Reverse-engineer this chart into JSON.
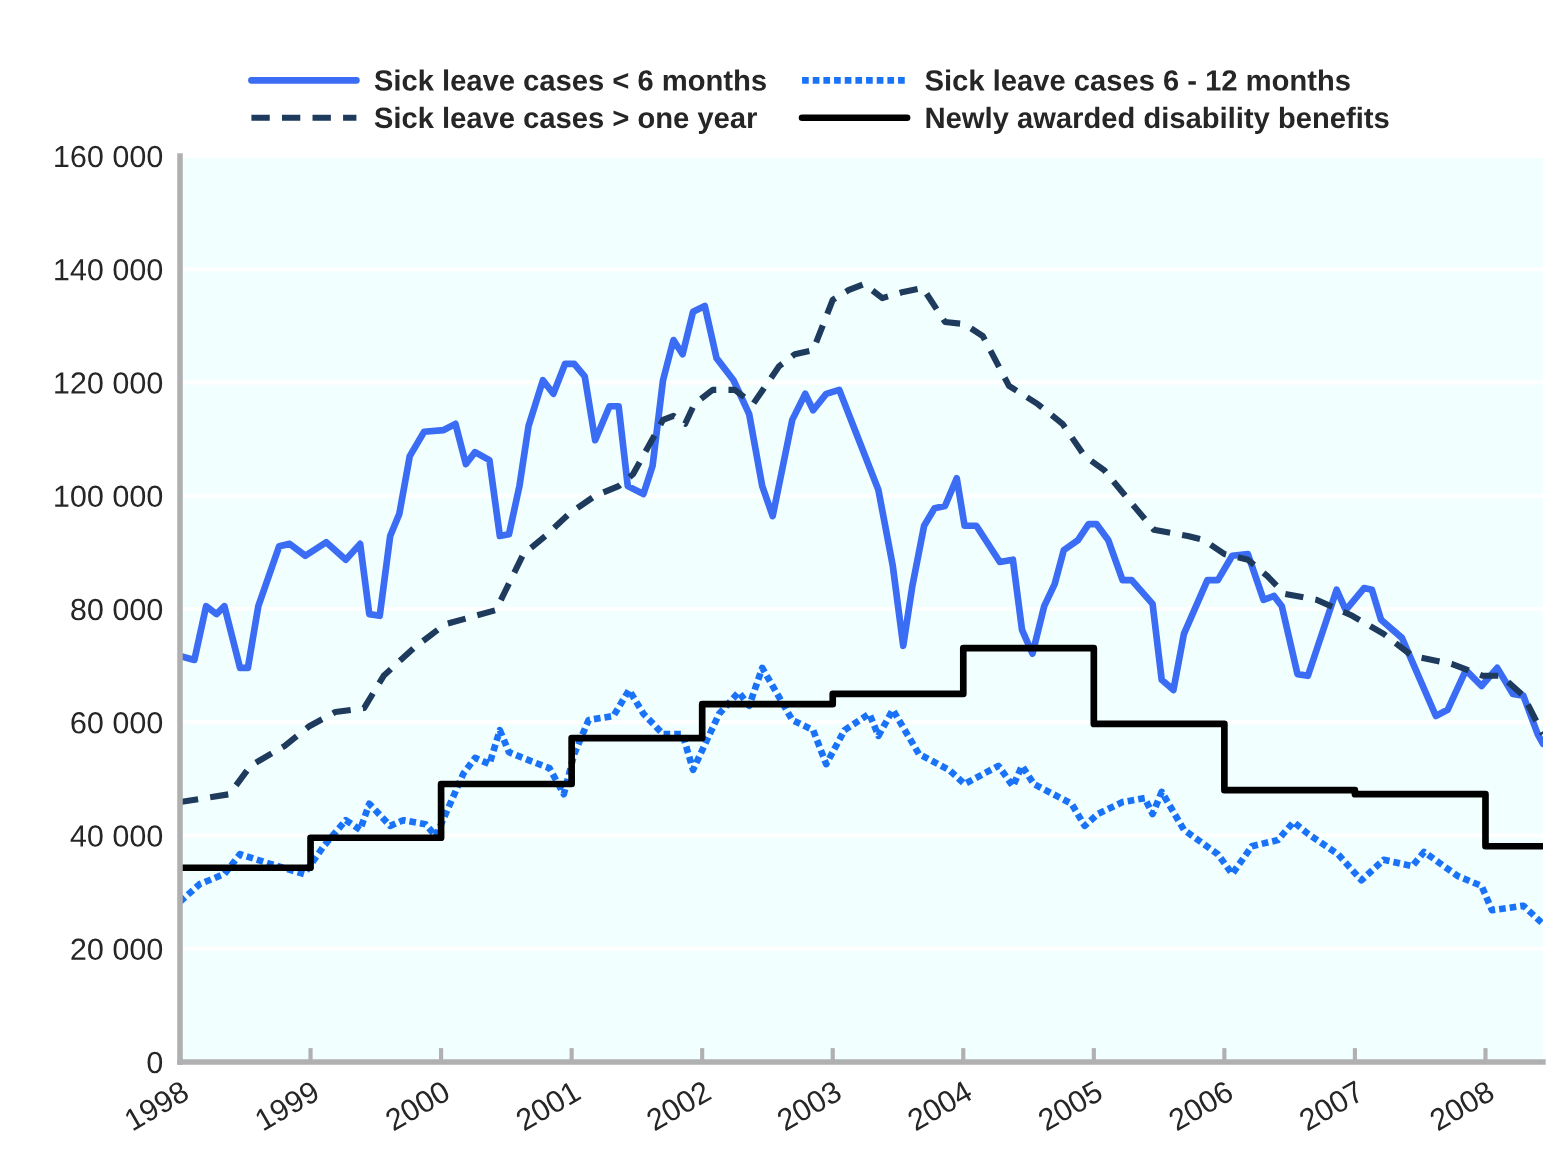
{
  "chart_data": {
    "type": "line",
    "legend": "top",
    "grid": "y",
    "xlim": [
      1998,
      2008.44
    ],
    "xticks": [
      1998,
      1999,
      2000,
      2001,
      2002,
      2003,
      2004,
      2005,
      2006,
      2007,
      2008
    ],
    "ylim": [
      0,
      160000
    ],
    "yticks": [
      0,
      {
        "value": 20000,
        "label": "20 000"
      },
      {
        "value": 40000,
        "label": "40 000"
      },
      {
        "value": 60000,
        "label": "60 000"
      },
      {
        "value": 80000,
        "label": "80 000"
      },
      {
        "value": 100000,
        "label": "100 000"
      },
      {
        "value": 120000,
        "label": "120 000"
      },
      {
        "value": 140000,
        "label": "140 000"
      },
      {
        "value": 160000,
        "label": "160 000"
      }
    ],
    "series": [
      {
        "name": "Sick leave cases < 6 months",
        "color": "#3a6cf4",
        "line_style": "solid",
        "x": [
          1998.0,
          1998.11,
          1998.2,
          1998.28,
          1998.34,
          1998.46,
          1998.52,
          1998.6,
          1998.76,
          1998.84,
          1998.96,
          1999.12,
          1999.27,
          1999.38,
          1999.45,
          1999.53,
          1999.61,
          1999.68,
          1999.76,
          1999.87,
          2000.02,
          2000.11,
          2000.19,
          2000.26,
          2000.37,
          2000.45,
          2000.52,
          2000.6,
          2000.67,
          2000.78,
          2000.86,
          2000.95,
          2001.02,
          2001.1,
          2001.18,
          2001.29,
          2001.36,
          2001.43,
          2001.55,
          2001.62,
          2001.7,
          2001.78,
          2001.85,
          2001.93,
          2002.02,
          2002.11,
          2002.24,
          2002.36,
          2002.46,
          2002.54,
          2002.69,
          2002.79,
          2002.85,
          2002.95,
          2003.05,
          2003.17,
          2003.35,
          2003.46,
          2003.54,
          2003.61,
          2003.7,
          2003.78,
          2003.86,
          2003.95,
          2004.01,
          2004.1,
          2004.28,
          2004.38,
          2004.45,
          2004.53,
          2004.62,
          2004.7,
          2004.77,
          2004.88,
          2004.96,
          2005.02,
          2005.11,
          2005.22,
          2005.29,
          2005.45,
          2005.52,
          2005.61,
          2005.69,
          2005.87,
          2005.95,
          2006.06,
          2006.18,
          2006.3,
          2006.38,
          2006.44,
          2006.56,
          2006.64,
          2006.86,
          2006.93,
          2007.07,
          2007.13,
          2007.2,
          2007.36,
          2007.62,
          2007.71,
          2007.85,
          2007.97,
          2008.09,
          2008.21,
          2008.29,
          2008.4,
          2008.44
        ],
        "values": [
          71700,
          71000,
          80500,
          79100,
          80500,
          69600,
          69600,
          80500,
          91100,
          91500,
          89400,
          91800,
          88700,
          91500,
          79100,
          78800,
          92900,
          96800,
          107000,
          111300,
          111600,
          112700,
          105600,
          107700,
          106300,
          92900,
          93200,
          101700,
          112300,
          120400,
          118000,
          123300,
          123300,
          121100,
          109800,
          115800,
          115800,
          101700,
          100300,
          105300,
          120400,
          127500,
          125000,
          132500,
          133500,
          124300,
          120400,
          114400,
          101700,
          96400,
          113400,
          118000,
          115100,
          118000,
          118700,
          111600,
          101000,
          87600,
          73500,
          84100,
          94700,
          97800,
          98200,
          103100,
          94700,
          94700,
          88300,
          88700,
          76300,
          72100,
          80500,
          84400,
          90400,
          92200,
          95000,
          95000,
          92200,
          85100,
          85100,
          80900,
          67500,
          65700,
          75600,
          85100,
          85100,
          89400,
          89700,
          81600,
          82300,
          80500,
          68500,
          68200,
          83400,
          79800,
          83700,
          83400,
          78100,
          74900,
          61100,
          62200,
          69200,
          66400,
          69600,
          65000,
          64700,
          57900,
          56200
        ]
      },
      {
        "name": "Sick leave cases 6 - 12 months",
        "color": "#1a73f7",
        "line_style": "dotted",
        "x": [
          1998.0,
          1998.15,
          1998.34,
          1998.46,
          1998.69,
          1998.95,
          1999.1,
          1999.27,
          1999.38,
          1999.45,
          1999.61,
          1999.71,
          1999.88,
          1999.96,
          2000.17,
          2000.26,
          2000.37,
          2000.45,
          2000.52,
          2000.67,
          2000.83,
          2000.94,
          2001.02,
          2001.13,
          2001.32,
          2001.44,
          2001.55,
          2001.7,
          2001.85,
          2001.93,
          2002.13,
          2002.28,
          2002.36,
          2002.46,
          2002.69,
          2002.85,
          2002.95,
          2003.09,
          2003.28,
          2003.35,
          2003.46,
          2003.66,
          2003.89,
          2004.01,
          2004.27,
          2004.38,
          2004.45,
          2004.54,
          2004.83,
          2004.93,
          2005.03,
          2005.22,
          2005.39,
          2005.45,
          2005.52,
          2005.69,
          2005.95,
          2006.06,
          2006.21,
          2006.41,
          2006.53,
          2006.64,
          2006.87,
          2007.05,
          2007.22,
          2007.44,
          2007.53,
          2007.79,
          2007.97,
          2008.05,
          2008.29,
          2008.44
        ],
        "values": [
          28300,
          31400,
          33200,
          36700,
          35000,
          33200,
          38100,
          42700,
          41000,
          45600,
          41700,
          42700,
          42000,
          39900,
          50900,
          53700,
          52600,
          58600,
          54700,
          53300,
          51900,
          47300,
          54400,
          60400,
          61100,
          65700,
          61500,
          57900,
          57900,
          51600,
          61500,
          65300,
          62900,
          69600,
          60400,
          58600,
          52600,
          58600,
          61500,
          57600,
          62200,
          54400,
          51600,
          49100,
          52300,
          48700,
          52300,
          49100,
          45600,
          41700,
          43800,
          45900,
          46600,
          43800,
          47700,
          41000,
          36700,
          33200,
          38100,
          39200,
          42400,
          40300,
          36700,
          32100,
          35700,
          34600,
          37100,
          32800,
          31100,
          26800,
          27600,
          24400
        ]
      },
      {
        "name": "Sick leave cases > one year",
        "color": "#1e3a5c",
        "line_style": "dashed",
        "x": [
          1998.0,
          1998.38,
          1998.54,
          1998.8,
          1998.99,
          1999.19,
          1999.41,
          1999.56,
          1999.79,
          2000.03,
          2000.42,
          2000.63,
          2000.8,
          2000.98,
          2001.18,
          2001.36,
          2001.47,
          2001.7,
          2001.78,
          2001.87,
          2001.94,
          2002.08,
          2002.25,
          2002.39,
          2002.59,
          2002.71,
          2002.85,
          2003.0,
          2003.12,
          2003.24,
          2003.38,
          2003.54,
          2003.69,
          2003.86,
          2004.01,
          2004.15,
          2004.35,
          2004.57,
          2004.76,
          2004.93,
          2005.08,
          2005.23,
          2005.46,
          2005.72,
          2005.84,
          2006.0,
          2006.18,
          2006.33,
          2006.46,
          2006.71,
          2006.98,
          2007.22,
          2007.44,
          2007.74,
          2007.98,
          2008.12,
          2008.29,
          2008.44
        ],
        "values": [
          45900,
          47300,
          52300,
          55800,
          59300,
          61800,
          62500,
          68200,
          73100,
          77300,
          79800,
          89700,
          92900,
          96800,
          100000,
          101700,
          103800,
          113400,
          114100,
          112700,
          116200,
          118700,
          118700,
          116200,
          122900,
          125000,
          125700,
          134600,
          136300,
          137400,
          134900,
          136000,
          136700,
          130700,
          130300,
          128200,
          119400,
          116200,
          112700,
          107000,
          104500,
          100300,
          94000,
          92900,
          92200,
          89700,
          88700,
          85800,
          82700,
          81600,
          78800,
          75600,
          71700,
          70300,
          68200,
          68200,
          64700,
          57900
        ]
      },
      {
        "name": "Newly awarded disability benefits",
        "color": "#000000",
        "line_style": "solid",
        "type": "step",
        "x": [
          1998,
          1999,
          2000,
          2001,
          2002,
          2003,
          2004,
          2005,
          2006,
          2007,
          2008,
          2008.44
        ],
        "values": [
          34300,
          39600,
          49100,
          57200,
          63200,
          65000,
          73100,
          59700,
          48000,
          47300,
          38100,
          38100
        ]
      }
    ]
  }
}
